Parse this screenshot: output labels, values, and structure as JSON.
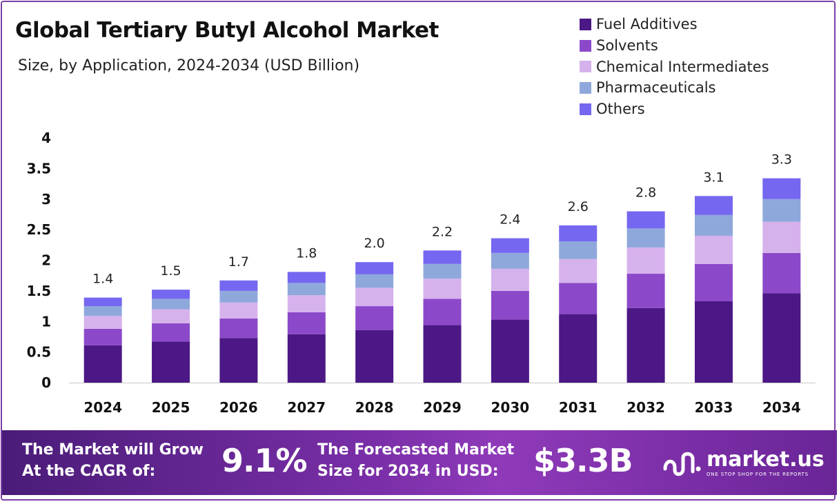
{
  "title": "Global Tertiary Butyl Alcohol Market",
  "subtitle": "Size, by Application, 2024-2034 (USD Billion)",
  "colors": {
    "fuel_additives": "#4b1885",
    "solvents": "#8b49c9",
    "chemical_intermediates": "#d6b2ec",
    "pharmaceuticals": "#8fa8dc",
    "others": "#7567f0",
    "banner_start": "#4a1c78",
    "banner_end": "#8f3ab9"
  },
  "chart_data": {
    "type": "bar",
    "stacked": true,
    "title": "Global Tertiary Butyl Alcohol Market",
    "subtitle": "Size, by Application, 2024-2034 (USD Billion)",
    "categories": [
      "2024",
      "2025",
      "2026",
      "2027",
      "2028",
      "2029",
      "2030",
      "2031",
      "2032",
      "2033",
      "2034"
    ],
    "series": [
      {
        "name": "Fuel Additives",
        "color": "#4b1885",
        "values": [
          0.61,
          0.67,
          0.73,
          0.79,
          0.86,
          0.94,
          1.03,
          1.12,
          1.22,
          1.33,
          1.46
        ]
      },
      {
        "name": "Solvents",
        "color": "#8b49c9",
        "values": [
          0.27,
          0.3,
          0.32,
          0.36,
          0.39,
          0.43,
          0.47,
          0.51,
          0.56,
          0.61,
          0.66
        ]
      },
      {
        "name": "Chemical Intermediates",
        "color": "#d6b2ec",
        "values": [
          0.21,
          0.23,
          0.26,
          0.28,
          0.3,
          0.33,
          0.36,
          0.39,
          0.43,
          0.46,
          0.51
        ]
      },
      {
        "name": "Pharmaceuticals",
        "color": "#8fa8dc",
        "values": [
          0.16,
          0.17,
          0.19,
          0.2,
          0.22,
          0.24,
          0.26,
          0.29,
          0.31,
          0.34,
          0.37
        ]
      },
      {
        "name": "Others",
        "color": "#7567f0",
        "values": [
          0.14,
          0.15,
          0.17,
          0.18,
          0.2,
          0.22,
          0.24,
          0.26,
          0.28,
          0.31,
          0.34
        ]
      }
    ],
    "totals": [
      "1.4",
      "1.5",
      "1.7",
      "1.8",
      "2.0",
      "2.2",
      "2.4",
      "2.6",
      "2.8",
      "3.1",
      "3.3"
    ],
    "yticks": [
      "0",
      "0.5",
      "1",
      "1.5",
      "2",
      "2.5",
      "3",
      "3.5",
      "4"
    ],
    "ylim": [
      0,
      4
    ],
    "xlabel": "",
    "ylabel": "",
    "grid": false,
    "legend_position": "top-right"
  },
  "banner": {
    "cagr_label_line1": "The Market will Grow",
    "cagr_label_line2": "At the CAGR of:",
    "cagr_value": "9.1%",
    "forecast_label_line1": "The Forecasted Market",
    "forecast_label_line2": "Size for 2034 in USD:",
    "forecast_value": "$3.3B",
    "logo_text": "market.us",
    "logo_tagline": "ONE STOP SHOP FOR THE REPORTS",
    "logo_icon": "market-us-logo-icon"
  }
}
